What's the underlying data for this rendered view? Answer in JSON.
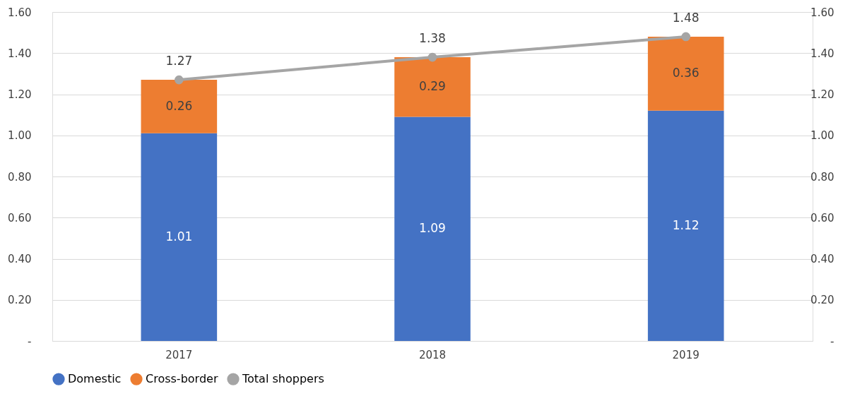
{
  "chart_data": {
    "type": "bar",
    "stacked": true,
    "categories": [
      "2017",
      "2018",
      "2019"
    ],
    "series": [
      {
        "name": "Domestic",
        "color": "#4472c4",
        "values": [
          1.01,
          1.09,
          1.12
        ]
      },
      {
        "name": "Cross-border",
        "color": "#ed7d31",
        "values": [
          0.26,
          0.29,
          0.36
        ]
      },
      {
        "name": "Total shoppers",
        "type": "line",
        "axis": "y2",
        "color": "#a5a5a5",
        "values": [
          1.27,
          1.38,
          1.48
        ]
      }
    ],
    "ylim": [
      0,
      1.6
    ],
    "yticks": [
      {
        "value": 0,
        "label": "-"
      },
      {
        "value": 0.2,
        "label": "0.20"
      },
      {
        "value": 0.4,
        "label": "0.40"
      },
      {
        "value": 0.6,
        "label": "0.60"
      },
      {
        "value": 0.8,
        "label": "0.80"
      },
      {
        "value": 1.0,
        "label": "1.00"
      },
      {
        "value": 1.2,
        "label": "1.20"
      },
      {
        "value": 1.4,
        "label": "1.40"
      },
      {
        "value": 1.6,
        "label": "1.60"
      }
    ],
    "y2lim": [
      0,
      1.6
    ],
    "y2ticks": [
      {
        "value": 0,
        "label": "-"
      },
      {
        "value": 0.2,
        "label": "0.20"
      },
      {
        "value": 0.4,
        "label": "0.40"
      },
      {
        "value": 0.6,
        "label": "0.60"
      },
      {
        "value": 0.8,
        "label": "0.80"
      },
      {
        "value": 1.0,
        "label": "1.00"
      },
      {
        "value": 1.2,
        "label": "1.20"
      },
      {
        "value": 1.4,
        "label": "1.40"
      },
      {
        "value": 1.6,
        "label": "1.60"
      }
    ],
    "grid": "y",
    "legend": "bottom",
    "data_labels": true,
    "marker": "circle",
    "line_style": "solid"
  }
}
